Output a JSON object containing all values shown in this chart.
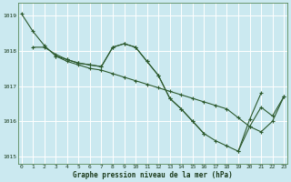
{
  "bg_color": "#cbe9f0",
  "grid_color": "#ffffff",
  "line_color": "#2d5a2d",
  "title": "Graphe pression niveau de la mer (hPa)",
  "title_color": "#1a3a1a",
  "ylim": [
    1014.8,
    1019.35
  ],
  "yticks": [
    1015,
    1016,
    1017,
    1018,
    1019
  ],
  "xlim": [
    -0.3,
    23.3
  ],
  "xticks": [
    0,
    1,
    2,
    3,
    4,
    5,
    6,
    7,
    8,
    9,
    10,
    11,
    12,
    13,
    14,
    15,
    16,
    17,
    18,
    19,
    20,
    21,
    22,
    23
  ],
  "series_a": {
    "x": [
      0,
      1,
      2,
      3,
      4,
      5,
      6,
      7,
      8,
      9,
      10,
      11,
      12,
      13,
      14,
      15,
      16,
      17,
      18,
      19,
      20,
      21,
      22,
      23
    ],
    "y": [
      1019.05,
      1018.55,
      1018.15,
      1017.85,
      1017.7,
      1017.6,
      1017.5,
      1017.45,
      1017.35,
      1017.25,
      1017.15,
      1017.05,
      1016.95,
      1016.85,
      1016.75,
      1016.65,
      1016.55,
      1016.45,
      1016.35,
      1016.1,
      1015.85,
      1015.7,
      1016.0,
      1016.7
    ]
  },
  "series_b": {
    "x": [
      1,
      2,
      3,
      4,
      5,
      6,
      7,
      8,
      9,
      10,
      11,
      12,
      13,
      14,
      15,
      16
    ],
    "y": [
      1018.1,
      1018.1,
      1017.9,
      1017.75,
      1017.65,
      1017.6,
      1017.55,
      1018.1,
      1018.2,
      1018.1,
      1017.7,
      1017.3,
      1016.65,
      1016.35,
      1016.0,
      1015.65
    ]
  },
  "series_c": {
    "x": [
      3,
      4,
      5,
      6,
      7,
      8,
      9,
      10,
      11,
      12,
      13,
      14,
      15,
      16,
      17,
      18,
      19,
      20,
      21
    ],
    "y": [
      1017.85,
      1017.75,
      1017.65,
      1017.6,
      1017.55,
      1018.1,
      1018.2,
      1018.1,
      1017.7,
      1017.3,
      1016.65,
      1016.35,
      1016.0,
      1015.65,
      1015.45,
      1015.3,
      1015.15,
      1016.05,
      1016.8
    ]
  },
  "series_d": {
    "x": [
      19,
      20,
      21,
      22,
      23
    ],
    "y": [
      1015.15,
      1015.85,
      1016.4,
      1016.15,
      1016.7
    ]
  }
}
